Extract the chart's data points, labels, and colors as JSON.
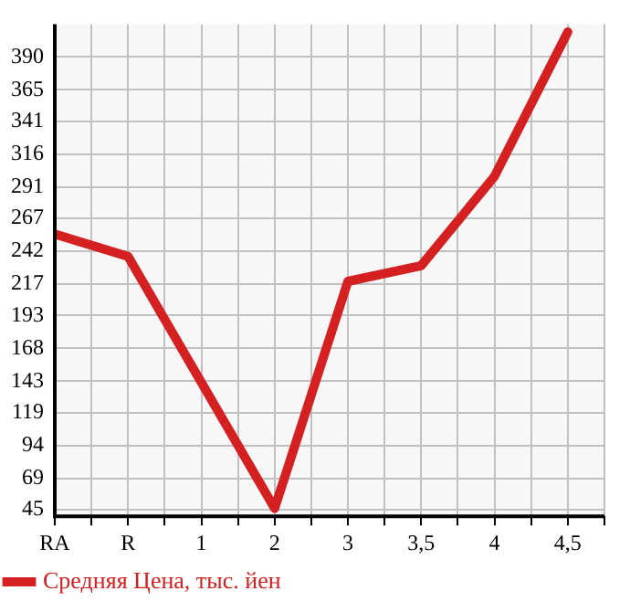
{
  "chart_data": {
    "type": "line",
    "categories": [
      "RA",
      "R",
      "1",
      "2",
      "3",
      "3,5",
      "4",
      "4,5"
    ],
    "series": [
      {
        "name": "Средняя Цена, тыс. йен",
        "color": "#d42020",
        "values": [
          255,
          238,
          null,
          46,
          219,
          231,
          299,
          409
        ]
      }
    ],
    "ylim": [
      40,
      415
    ],
    "yticks": [
      45,
      69,
      94,
      119,
      143,
      168,
      193,
      217,
      242,
      267,
      291,
      316,
      341,
      365,
      390
    ],
    "grid": true,
    "legend": "bottom",
    "marker": "none",
    "line_style": "solid"
  }
}
